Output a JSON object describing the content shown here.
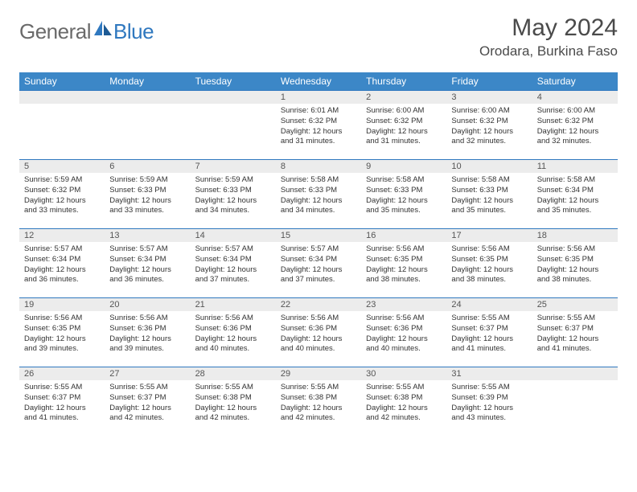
{
  "logo": {
    "text1": "General",
    "text2": "Blue"
  },
  "title": "May 2024",
  "location": "Orodara, Burkina Faso",
  "colors": {
    "header_bg": "#3c87c7",
    "header_text": "#ffffff",
    "daynum_bg": "#ececec",
    "border": "#2f78bf",
    "logo_gray": "#6a6a6a",
    "logo_blue": "#2f78bf"
  },
  "weekdays": [
    "Sunday",
    "Monday",
    "Tuesday",
    "Wednesday",
    "Thursday",
    "Friday",
    "Saturday"
  ],
  "weeks": [
    [
      null,
      null,
      null,
      {
        "n": "1",
        "sr": "6:01 AM",
        "ss": "6:32 PM",
        "dl": "12 hours and 31 minutes."
      },
      {
        "n": "2",
        "sr": "6:00 AM",
        "ss": "6:32 PM",
        "dl": "12 hours and 31 minutes."
      },
      {
        "n": "3",
        "sr": "6:00 AM",
        "ss": "6:32 PM",
        "dl": "12 hours and 32 minutes."
      },
      {
        "n": "4",
        "sr": "6:00 AM",
        "ss": "6:32 PM",
        "dl": "12 hours and 32 minutes."
      }
    ],
    [
      {
        "n": "5",
        "sr": "5:59 AM",
        "ss": "6:32 PM",
        "dl": "12 hours and 33 minutes."
      },
      {
        "n": "6",
        "sr": "5:59 AM",
        "ss": "6:33 PM",
        "dl": "12 hours and 33 minutes."
      },
      {
        "n": "7",
        "sr": "5:59 AM",
        "ss": "6:33 PM",
        "dl": "12 hours and 34 minutes."
      },
      {
        "n": "8",
        "sr": "5:58 AM",
        "ss": "6:33 PM",
        "dl": "12 hours and 34 minutes."
      },
      {
        "n": "9",
        "sr": "5:58 AM",
        "ss": "6:33 PM",
        "dl": "12 hours and 35 minutes."
      },
      {
        "n": "10",
        "sr": "5:58 AM",
        "ss": "6:33 PM",
        "dl": "12 hours and 35 minutes."
      },
      {
        "n": "11",
        "sr": "5:58 AM",
        "ss": "6:34 PM",
        "dl": "12 hours and 35 minutes."
      }
    ],
    [
      {
        "n": "12",
        "sr": "5:57 AM",
        "ss": "6:34 PM",
        "dl": "12 hours and 36 minutes."
      },
      {
        "n": "13",
        "sr": "5:57 AM",
        "ss": "6:34 PM",
        "dl": "12 hours and 36 minutes."
      },
      {
        "n": "14",
        "sr": "5:57 AM",
        "ss": "6:34 PM",
        "dl": "12 hours and 37 minutes."
      },
      {
        "n": "15",
        "sr": "5:57 AM",
        "ss": "6:34 PM",
        "dl": "12 hours and 37 minutes."
      },
      {
        "n": "16",
        "sr": "5:56 AM",
        "ss": "6:35 PM",
        "dl": "12 hours and 38 minutes."
      },
      {
        "n": "17",
        "sr": "5:56 AM",
        "ss": "6:35 PM",
        "dl": "12 hours and 38 minutes."
      },
      {
        "n": "18",
        "sr": "5:56 AM",
        "ss": "6:35 PM",
        "dl": "12 hours and 38 minutes."
      }
    ],
    [
      {
        "n": "19",
        "sr": "5:56 AM",
        "ss": "6:35 PM",
        "dl": "12 hours and 39 minutes."
      },
      {
        "n": "20",
        "sr": "5:56 AM",
        "ss": "6:36 PM",
        "dl": "12 hours and 39 minutes."
      },
      {
        "n": "21",
        "sr": "5:56 AM",
        "ss": "6:36 PM",
        "dl": "12 hours and 40 minutes."
      },
      {
        "n": "22",
        "sr": "5:56 AM",
        "ss": "6:36 PM",
        "dl": "12 hours and 40 minutes."
      },
      {
        "n": "23",
        "sr": "5:56 AM",
        "ss": "6:36 PM",
        "dl": "12 hours and 40 minutes."
      },
      {
        "n": "24",
        "sr": "5:55 AM",
        "ss": "6:37 PM",
        "dl": "12 hours and 41 minutes."
      },
      {
        "n": "25",
        "sr": "5:55 AM",
        "ss": "6:37 PM",
        "dl": "12 hours and 41 minutes."
      }
    ],
    [
      {
        "n": "26",
        "sr": "5:55 AM",
        "ss": "6:37 PM",
        "dl": "12 hours and 41 minutes."
      },
      {
        "n": "27",
        "sr": "5:55 AM",
        "ss": "6:37 PM",
        "dl": "12 hours and 42 minutes."
      },
      {
        "n": "28",
        "sr": "5:55 AM",
        "ss": "6:38 PM",
        "dl": "12 hours and 42 minutes."
      },
      {
        "n": "29",
        "sr": "5:55 AM",
        "ss": "6:38 PM",
        "dl": "12 hours and 42 minutes."
      },
      {
        "n": "30",
        "sr": "5:55 AM",
        "ss": "6:38 PM",
        "dl": "12 hours and 42 minutes."
      },
      {
        "n": "31",
        "sr": "5:55 AM",
        "ss": "6:39 PM",
        "dl": "12 hours and 43 minutes."
      },
      null
    ]
  ],
  "labels": {
    "sunrise": "Sunrise:",
    "sunset": "Sunset:",
    "daylight": "Daylight:"
  }
}
